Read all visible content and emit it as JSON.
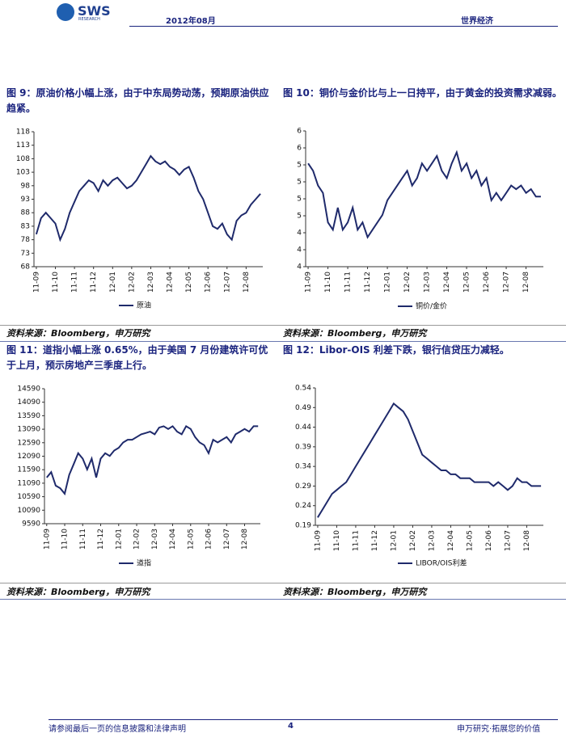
{
  "header": {
    "logo": "SWS",
    "logo_sub": "RESEARCH",
    "date": "2012年08月",
    "section": "世界经济"
  },
  "chart_data": [
    {
      "type": "line",
      "title": "图 9：原油价格小幅上涨，由于中东局势动荡，预期原油供应趋紧。",
      "source": "资料来源：Bloomberg，申万研究",
      "categories": [
        "11-09",
        null,
        null,
        null,
        "11-10",
        null,
        null,
        null,
        "11-11",
        null,
        null,
        null,
        "11-12",
        null,
        null,
        null,
        "12-01",
        null,
        null,
        null,
        "12-02",
        null,
        null,
        null,
        "12-03",
        null,
        null,
        null,
        "12-04",
        null,
        null,
        null,
        "12-05",
        null,
        null,
        null,
        "12-06",
        null,
        null,
        null,
        "12-07",
        null,
        null,
        null,
        "12-08",
        null,
        null,
        null
      ],
      "series": [
        {
          "name": "原油",
          "color": "#1f2a6b",
          "values": [
            80,
            86,
            88,
            86,
            84,
            78,
            82,
            88,
            92,
            96,
            98,
            100,
            99,
            96,
            100,
            98,
            100,
            101,
            99,
            97,
            98,
            100,
            103,
            106,
            109,
            107,
            106,
            107,
            105,
            104,
            102,
            104,
            105,
            101,
            96,
            93,
            88,
            83,
            82,
            84,
            80,
            78,
            85,
            87,
            88,
            91,
            93,
            95
          ]
        }
      ],
      "ylim": [
        68,
        118
      ],
      "yticks": [
        68,
        73,
        78,
        83,
        88,
        93,
        98,
        103,
        108,
        113,
        118
      ]
    },
    {
      "type": "line",
      "title": "图 10：铜价与金价比与上一日持平，由于黄金的投资需求减弱。",
      "source": "资料来源：Bloomberg，申万研究",
      "categories": [
        "11-09",
        null,
        null,
        null,
        "11-10",
        null,
        null,
        null,
        "11-11",
        null,
        null,
        null,
        "11-12",
        null,
        null,
        null,
        "12-01",
        null,
        null,
        null,
        "12-02",
        null,
        null,
        null,
        "12-03",
        null,
        null,
        null,
        "12-04",
        null,
        null,
        null,
        "12-05",
        null,
        null,
        null,
        "12-06",
        null,
        null,
        null,
        "12-07",
        null,
        null,
        null,
        "12-08",
        null,
        null,
        null
      ],
      "series": [
        {
          "name": "铜价/金价",
          "color": "#1f2a6b",
          "values": [
            5.3,
            5.2,
            5.0,
            4.9,
            4.5,
            4.4,
            4.7,
            4.4,
            4.5,
            4.7,
            4.4,
            4.5,
            4.3,
            4.4,
            4.5,
            4.6,
            4.8,
            4.9,
            5.0,
            5.1,
            5.2,
            5.0,
            5.1,
            5.3,
            5.2,
            5.3,
            5.4,
            5.2,
            5.1,
            5.3,
            5.45,
            5.2,
            5.3,
            5.1,
            5.2,
            5.0,
            5.1,
            4.8,
            4.9,
            4.8,
            4.9,
            5.0,
            4.95,
            5.0,
            4.9,
            4.95,
            4.85,
            4.85
          ]
        }
      ],
      "ylim": [
        3.9,
        5.74
      ],
      "yticks": [
        {
          "value": 3.9,
          "label": "4"
        },
        {
          "value": 4.13,
          "label": "4"
        },
        {
          "value": 4.36,
          "label": "4"
        },
        {
          "value": 4.59,
          "label": "5"
        },
        {
          "value": 4.82,
          "label": "5"
        },
        {
          "value": 5.05,
          "label": "5"
        },
        {
          "value": 5.28,
          "label": "5"
        },
        {
          "value": 5.51,
          "label": "6"
        },
        {
          "value": 5.74,
          "label": "6"
        }
      ]
    },
    {
      "type": "line",
      "title": "图 11：道指小幅上涨 0.65%，由于美国 7 月份建筑许可优于上月，预示房地产三季度上行。",
      "source": "资料来源：Bloomberg，申万研究",
      "categories": [
        "11-09",
        null,
        null,
        null,
        "11-10",
        null,
        null,
        null,
        "11-11",
        null,
        null,
        null,
        "11-12",
        null,
        null,
        null,
        "12-01",
        null,
        null,
        null,
        "12-02",
        null,
        null,
        null,
        "12-03",
        null,
        null,
        null,
        "12-04",
        null,
        null,
        null,
        "12-05",
        null,
        null,
        null,
        "12-06",
        null,
        null,
        null,
        "12-07",
        null,
        null,
        null,
        "12-08",
        null,
        null,
        null
      ],
      "series": [
        {
          "name": "道指",
          "color": "#1f2a6b",
          "values": [
            11300,
            11500,
            11000,
            10900,
            10700,
            11400,
            11800,
            12200,
            12000,
            11600,
            12000,
            11300,
            12000,
            12200,
            12100,
            12300,
            12400,
            12600,
            12700,
            12700,
            12800,
            12900,
            12950,
            13000,
            12900,
            13150,
            13200,
            13100,
            13200,
            13000,
            12900,
            13200,
            13100,
            12800,
            12600,
            12500,
            12200,
            12700,
            12600,
            12700,
            12800,
            12600,
            12900,
            13000,
            13100,
            13000,
            13200,
            13200
          ]
        }
      ],
      "ylim": [
        9590,
        14590
      ],
      "yticks": [
        9590,
        10090,
        10590,
        11090,
        11590,
        12090,
        12590,
        13090,
        13590,
        14090,
        14590
      ]
    },
    {
      "type": "line",
      "title": "图 12：Libor-OIS 利差下跌，银行信贷压力减轻。",
      "source": "资料来源：Bloomberg，申万研究",
      "categories": [
        "11-09",
        null,
        null,
        null,
        "11-10",
        null,
        null,
        null,
        "11-11",
        null,
        null,
        null,
        "11-12",
        null,
        null,
        null,
        "12-01",
        null,
        null,
        null,
        "12-02",
        null,
        null,
        null,
        "12-03",
        null,
        null,
        null,
        "12-04",
        null,
        null,
        null,
        "12-05",
        null,
        null,
        null,
        "12-06",
        null,
        null,
        null,
        "12-07",
        null,
        null,
        null,
        "12-08",
        null,
        null,
        null
      ],
      "series": [
        {
          "name": "LIBOR/OIS利差",
          "color": "#1f2a6b",
          "values": [
            0.21,
            0.23,
            0.25,
            0.27,
            0.28,
            0.29,
            0.3,
            0.32,
            0.34,
            0.36,
            0.38,
            0.4,
            0.42,
            0.44,
            0.46,
            0.48,
            0.5,
            0.49,
            0.48,
            0.46,
            0.43,
            0.4,
            0.37,
            0.36,
            0.35,
            0.34,
            0.33,
            0.33,
            0.32,
            0.32,
            0.31,
            0.31,
            0.31,
            0.3,
            0.3,
            0.3,
            0.3,
            0.29,
            0.3,
            0.29,
            0.28,
            0.29,
            0.31,
            0.3,
            0.3,
            0.29,
            0.29,
            0.29
          ]
        }
      ],
      "ylim": [
        0.19,
        0.54
      ],
      "yticks": [
        0.19,
        0.24,
        0.29,
        0.34,
        0.39,
        0.44,
        0.49,
        0.54
      ]
    }
  ],
  "footer": {
    "disclaimer": "请参阅最后一页的信息披露和法律声明",
    "page": "4",
    "slogan": "申万研究·拓展您的价值"
  }
}
